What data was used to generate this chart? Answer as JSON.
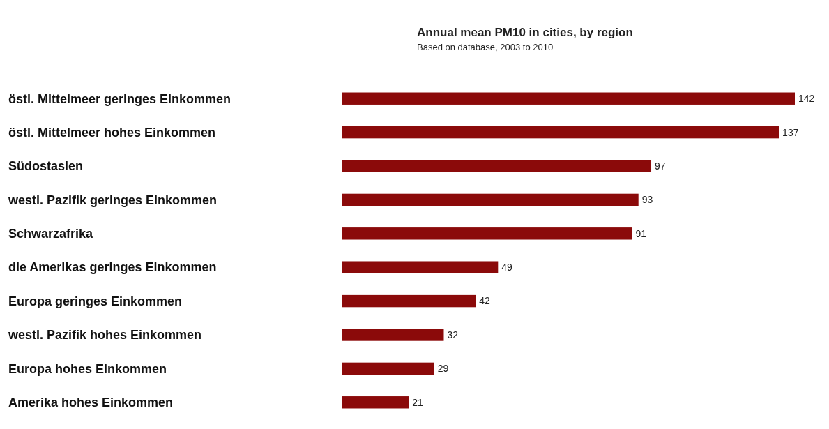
{
  "chart_data": {
    "type": "bar",
    "orientation": "horizontal",
    "title": "Annual mean PM10 in cities, by region",
    "subtitle": "Based on database, 2003 to 2010",
    "categories": [
      "östl. Mittelmeer geringes Einkommen",
      "östl. Mittelmeer hohes Einkommen",
      "Südostasien",
      "westl. Pazifik geringes Einkommen",
      "Schwarzafrika",
      "die Amerikas geringes Einkommen",
      "Europa geringes Einkommen",
      "westl. Pazifik hohes Einkommen",
      "Europa hohes Einkommen",
      "Amerika hohes Einkommen"
    ],
    "values": [
      142,
      137,
      97,
      93,
      91,
      49,
      42,
      32,
      29,
      21
    ],
    "color": "#8b0a0a",
    "data_labels": true
  }
}
